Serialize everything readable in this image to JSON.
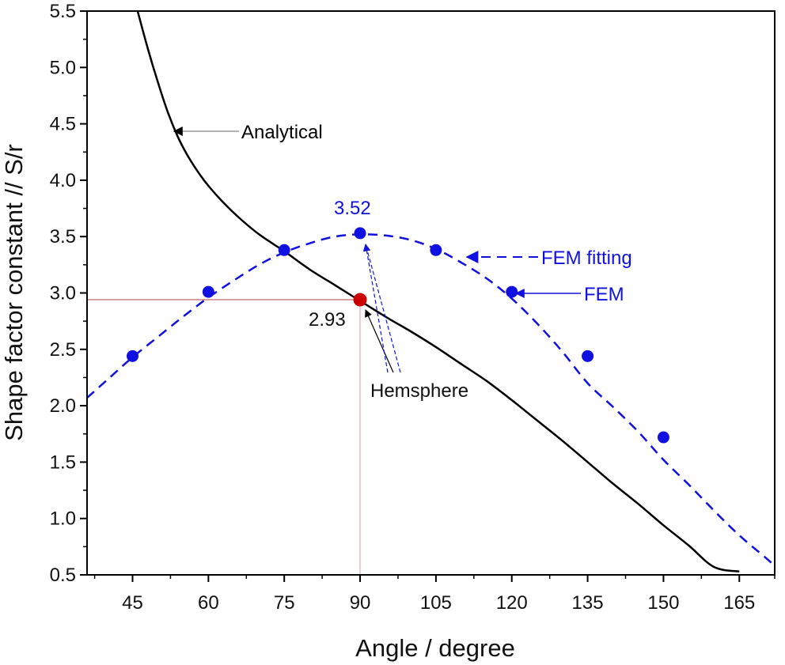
{
  "chart_data": {
    "type": "line",
    "xlabel": "Angle / degree",
    "ylabel": "Shape factor constant // S/r",
    "xlim": [
      36,
      172
    ],
    "ylim": [
      0.5,
      5.5
    ],
    "xticks": [
      45,
      60,
      75,
      90,
      105,
      120,
      135,
      150,
      165
    ],
    "yticks": [
      0.5,
      1.0,
      1.5,
      2.0,
      2.5,
      3.0,
      3.5,
      4.0,
      4.5,
      5.0,
      5.5
    ],
    "ytick_labels": [
      "0.5",
      "1.0",
      "1.5",
      "2.0",
      "2.5",
      "3.0",
      "3.5",
      "4.0",
      "4.5",
      "5.0",
      "5.5"
    ],
    "grid": false,
    "series": [
      {
        "name": "Analytical",
        "style": "solid",
        "color": "#000000",
        "x": [
          46,
          48,
          50,
          52,
          54,
          56,
          58,
          60,
          63,
          66,
          70,
          75,
          80,
          85,
          90,
          95,
          100,
          105,
          110,
          115,
          120,
          125,
          130,
          135,
          140,
          145,
          150,
          155,
          160,
          165
        ],
        "y": [
          5.5,
          5.17,
          4.87,
          4.6,
          4.38,
          4.21,
          4.07,
          3.95,
          3.8,
          3.67,
          3.52,
          3.37,
          3.21,
          3.07,
          2.93,
          2.79,
          2.66,
          2.52,
          2.37,
          2.22,
          2.05,
          1.87,
          1.69,
          1.5,
          1.31,
          1.13,
          0.94,
          0.76,
          0.57,
          0.53
        ]
      },
      {
        "name": "FEM fitting",
        "style": "dashed",
        "color": "#1010e0",
        "x": [
          36,
          40,
          45,
          50,
          55,
          60,
          65,
          70,
          75,
          80,
          85,
          90,
          95,
          100,
          105,
          110,
          115,
          120,
          125,
          130,
          135,
          140,
          145,
          150,
          155,
          160,
          165,
          170,
          172
        ],
        "y": [
          2.07,
          2.23,
          2.43,
          2.61,
          2.79,
          2.96,
          3.11,
          3.25,
          3.36,
          3.44,
          3.5,
          3.52,
          3.51,
          3.47,
          3.39,
          3.27,
          3.13,
          2.95,
          2.73,
          2.48,
          2.2,
          1.99,
          1.77,
          1.52,
          1.3,
          1.07,
          0.85,
          0.66,
          0.58
        ]
      },
      {
        "name": "FEM",
        "style": "markers",
        "color": "#1010e0",
        "x": [
          45,
          60,
          75,
          90,
          105,
          120,
          135,
          150
        ],
        "y": [
          2.44,
          3.01,
          3.38,
          3.53,
          3.38,
          3.01,
          2.44,
          1.72
        ]
      }
    ],
    "highlight_point": {
      "x": 90,
      "y": 2.94,
      "color": "#cc0000"
    },
    "annotations": {
      "analytical": "Analytical",
      "fem_fitting": "FEM fitting",
      "fem": "FEM",
      "max_value": "3.52",
      "hemisphere_value": "2.93",
      "hemisphere": "Hemsphere"
    }
  }
}
